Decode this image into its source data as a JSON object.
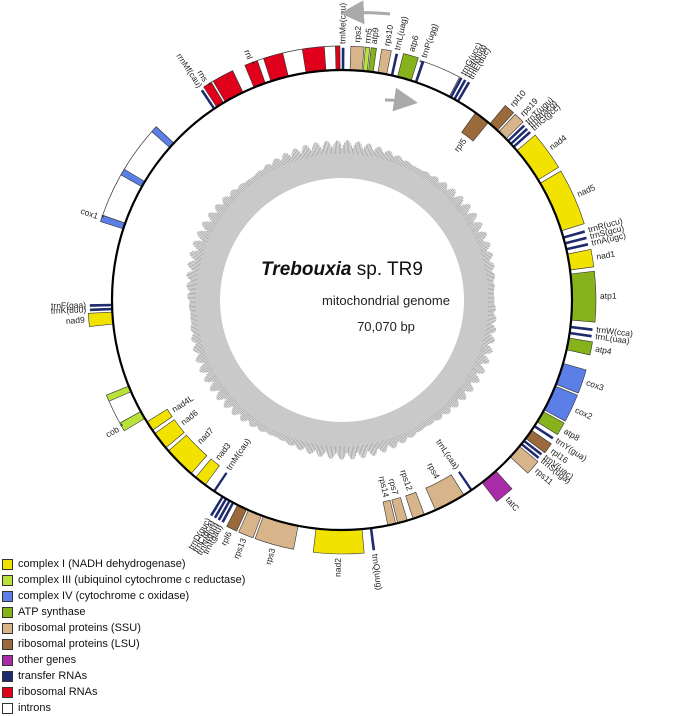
{
  "title": {
    "species": "Trebouxia",
    "strain": " sp. TR9",
    "line2": "mitochondrial genome",
    "line3": "70,070 bp"
  },
  "colors": {
    "complex_I": "#f2e200",
    "complex_III": "#b9e23a",
    "complex_IV": "#5b7fe6",
    "atp": "#86b21c",
    "ssu": "#d8b48a",
    "lsu": "#9a6a3a",
    "other": "#a82ca8",
    "trna": "#1e2a6e",
    "rrna": "#e0001b",
    "intron": "#ffffff",
    "backbone": "#000000",
    "gc_ring": "#c9c9c9",
    "arrow": "#aaaaaa"
  },
  "legend": [
    {
      "label": "complex I (NADH dehydrogenase)",
      "color": "complex_I"
    },
    {
      "label": "complex III (ubiquinol cytochrome c reductase)",
      "color": "complex_III"
    },
    {
      "label": "complex IV (cytochrome c oxidase)",
      "color": "complex_IV"
    },
    {
      "label": "ATP synthase",
      "color": "atp"
    },
    {
      "label": "ribosomal proteins (SSU)",
      "color": "ssu"
    },
    {
      "label": "ribosomal proteins (LSU)",
      "color": "lsu"
    },
    {
      "label": "other genes",
      "color": "other"
    },
    {
      "label": "transfer RNAs",
      "color": "trna"
    },
    {
      "label": "ribosomal RNAs",
      "color": "rrna"
    },
    {
      "label": "introns",
      "color": "intron"
    }
  ],
  "genes": [
    {
      "name": "trnMe(cau)",
      "start": 0.0,
      "end": 0.5,
      "type": "trna",
      "strand": "out"
    },
    {
      "name": "rps2",
      "start": 2.0,
      "end": 5.0,
      "type": "ssu",
      "strand": "out"
    },
    {
      "name": "rrn5",
      "start": 5.3,
      "end": 6.3,
      "type": "complex_III",
      "strand": "out"
    },
    {
      "name": "atp9",
      "start": 6.6,
      "end": 7.8,
      "type": "atp",
      "strand": "out"
    },
    {
      "name": "rps10",
      "start": 9.0,
      "end": 11.2,
      "type": "ssu",
      "strand": "out"
    },
    {
      "name": "trnL(uag)",
      "start": 12.3,
      "end": 12.8,
      "type": "trna",
      "strand": "out"
    },
    {
      "name": "atp6",
      "start": 14.0,
      "end": 17.5,
      "type": "atp",
      "strand": "out"
    },
    {
      "name": "trnP(ugg)",
      "start": 18.5,
      "end": 19.0,
      "type": "trna",
      "strand": "out",
      "intron": [
        19.0,
        27.8
      ],
      "mark": "*"
    },
    {
      "name": "trnG(ucc)",
      "start": 28.0,
      "end": 28.5,
      "type": "trna",
      "strand": "out"
    },
    {
      "name": "trnH(gug)",
      "start": 29.0,
      "end": 29.5,
      "type": "trna",
      "strand": "out"
    },
    {
      "name": "trnE(uuc)",
      "start": 30.0,
      "end": 30.5,
      "type": "trna",
      "strand": "out"
    },
    {
      "name": "rpl5",
      "start": 35.5,
      "end": 39.5,
      "type": "lsu",
      "strand": "in"
    },
    {
      "name": "rpl10",
      "start": 40.0,
      "end": 42.5,
      "type": "lsu",
      "strand": "out"
    },
    {
      "name": "rps19",
      "start": 43.0,
      "end": 45.5,
      "type": "ssu",
      "strand": "out"
    },
    {
      "name": "trnT(ugu)",
      "start": 46.0,
      "end": 46.5,
      "type": "trna",
      "strand": "out"
    },
    {
      "name": "trnR(acg)",
      "start": 47.0,
      "end": 47.5,
      "type": "trna",
      "strand": "out"
    },
    {
      "name": "trnG(gcc)",
      "start": 48.0,
      "end": 48.5,
      "type": "trna",
      "strand": "out"
    },
    {
      "name": "nad4",
      "start": 49.5,
      "end": 58.5,
      "type": "complex_I",
      "strand": "out"
    },
    {
      "name": "nad5",
      "start": 59.5,
      "end": 72.5,
      "type": "complex_I",
      "strand": "out"
    },
    {
      "name": "trnR(ucu)",
      "start": 74.0,
      "end": 74.5,
      "type": "trna",
      "strand": "out"
    },
    {
      "name": "trnS(gcu)",
      "start": 75.5,
      "end": 76.0,
      "type": "trna",
      "strand": "out"
    },
    {
      "name": "trnA(ugc)",
      "start": 77.0,
      "end": 77.5,
      "type": "trna",
      "strand": "out"
    },
    {
      "name": "nad1",
      "start": 78.5,
      "end": 82.5,
      "type": "complex_I",
      "strand": "out"
    },
    {
      "name": "atp1",
      "start": 83.5,
      "end": 95.0,
      "type": "atp",
      "strand": "out"
    },
    {
      "name": "trnW(cca)",
      "start": 96.5,
      "end": 97.0,
      "type": "trna",
      "strand": "out"
    },
    {
      "name": "trnL(uaa)",
      "start": 98.0,
      "end": 98.5,
      "type": "trna",
      "strand": "out"
    },
    {
      "name": "atp4",
      "start": 99.5,
      "end": 102.5,
      "type": "atp",
      "strand": "out"
    },
    {
      "name": "cox3",
      "start": 106.0,
      "end": 111.5,
      "type": "complex_IV",
      "strand": "out"
    },
    {
      "name": "cox2",
      "start": 112.0,
      "end": 118.5,
      "type": "complex_IV",
      "strand": "out"
    },
    {
      "name": "atp8",
      "start": 119.0,
      "end": 122.0,
      "type": "atp",
      "strand": "out"
    },
    {
      "name": "trnY(gua)",
      "start": 123.0,
      "end": 123.5,
      "type": "trna",
      "strand": "out"
    },
    {
      "name": "rpl16",
      "start": 124.5,
      "end": 127.0,
      "type": "lsu",
      "strand": "out"
    },
    {
      "name": "trnV(uac)",
      "start": 127.5,
      "end": 128.0,
      "type": "trna",
      "strand": "out"
    },
    {
      "name": "trnS(uga)",
      "start": 128.5,
      "end": 129.0,
      "type": "trna",
      "strand": "out"
    },
    {
      "name": "rps11",
      "start": 129.5,
      "end": 133.0,
      "type": "ssu",
      "strand": "out"
    },
    {
      "name": "tatC",
      "start": 138.0,
      "end": 142.5,
      "type": "other",
      "strand": "out"
    },
    {
      "name": "trnL(caa)",
      "start": 145.5,
      "end": 146.0,
      "type": "trna",
      "strand": "in"
    },
    {
      "name": "rps4",
      "start": 148.0,
      "end": 156.0,
      "type": "ssu",
      "strand": "in"
    },
    {
      "name": "rps12",
      "start": 159.0,
      "end": 162.0,
      "type": "ssu",
      "strand": "in"
    },
    {
      "name": "rps7",
      "start": 163.5,
      "end": 166.0,
      "type": "ssu",
      "strand": "in"
    },
    {
      "name": "rps14",
      "start": 166.5,
      "end": 168.5,
      "type": "ssu",
      "strand": "in"
    },
    {
      "name": "trnQ(uug)",
      "start": 172.5,
      "end": 173.0,
      "type": "trna",
      "strand": "out"
    },
    {
      "name": "nad2",
      "start": 175.0,
      "end": 186.5,
      "type": "complex_I",
      "strand": "out"
    },
    {
      "name": "rps3",
      "start": 191.0,
      "end": 200.0,
      "type": "ssu",
      "strand": "out"
    },
    {
      "name": "rps13",
      "start": 200.5,
      "end": 204.0,
      "type": "ssu",
      "strand": "out"
    },
    {
      "name": "rpl6",
      "start": 204.5,
      "end": 207.0,
      "type": "lsu",
      "strand": "out"
    },
    {
      "name": "trnI(gau)",
      "start": 208.0,
      "end": 208.5,
      "type": "trna",
      "strand": "out"
    },
    {
      "name": "trnN(guu)",
      "start": 209.0,
      "end": 209.5,
      "type": "trna",
      "strand": "out"
    },
    {
      "name": "trnC(gca)",
      "start": 210.0,
      "end": 210.5,
      "type": "trna",
      "strand": "out"
    },
    {
      "name": "trnD(guc)",
      "start": 211.0,
      "end": 211.5,
      "type": "trna",
      "strand": "out"
    },
    {
      "name": "trnM(cau)",
      "start": 213.5,
      "end": 214.0,
      "type": "trna",
      "strand": "in"
    },
    {
      "name": "nad3",
      "start": 216.5,
      "end": 219.5,
      "type": "complex_I",
      "strand": "in"
    },
    {
      "name": "nad7",
      "start": 221.0,
      "end": 229.0,
      "type": "complex_I",
      "strand": "in"
    },
    {
      "name": "nad6",
      "start": 230.0,
      "end": 234.5,
      "type": "complex_I",
      "strand": "in"
    },
    {
      "name": "nad4L",
      "start": 235.5,
      "end": 238.0,
      "type": "complex_I",
      "strand": "in"
    },
    {
      "name": "cob",
      "start": 239.0,
      "end": 241.0,
      "type": "complex_III",
      "strand": "out",
      "intron": [
        241.0,
        248.0
      ],
      "extra": [
        [
          246.5,
          248.0
        ]
      ],
      "mark": "*"
    },
    {
      "name": "nad9",
      "start": 264.0,
      "end": 267.0,
      "type": "complex_I",
      "strand": "out"
    },
    {
      "name": "trnK(uuu)",
      "start": 267.5,
      "end": 268.0,
      "type": "trna",
      "strand": "out"
    },
    {
      "name": "trnF(gaa)",
      "start": 268.5,
      "end": 269.0,
      "type": "trna",
      "strand": "out"
    },
    {
      "name": "cox1",
      "start": 288.0,
      "end": 289.5,
      "type": "complex_IV",
      "strand": "out",
      "intron": [
        289.5,
        313.0
      ],
      "extra": [
        [
          299.5,
          301.0
        ],
        [
          311.5,
          313.0
        ]
      ],
      "mark": "*"
    },
    {
      "name": "rrnMf(cau)",
      "start": 326.0,
      "end": 326.5,
      "type": "trna",
      "strand": "out"
    },
    {
      "name": "rns",
      "start": 327.0,
      "end": 329.0,
      "type": "rrna",
      "strand": "out",
      "intron": [
        329.0,
        334.5
      ],
      "extra": [
        [
          329.5,
          334.5
        ]
      ],
      "mark": "*"
    },
    {
      "name": "rnl",
      "start": 337.5,
      "end": 340.5,
      "type": "rrna",
      "strand": "out",
      "intron": [
        340.5,
        359.5
      ],
      "extra": [
        [
          342.0,
          346.5
        ],
        [
          351.0,
          356.0
        ],
        [
          358.5,
          359.5
        ]
      ],
      "mark": "*"
    }
  ]
}
